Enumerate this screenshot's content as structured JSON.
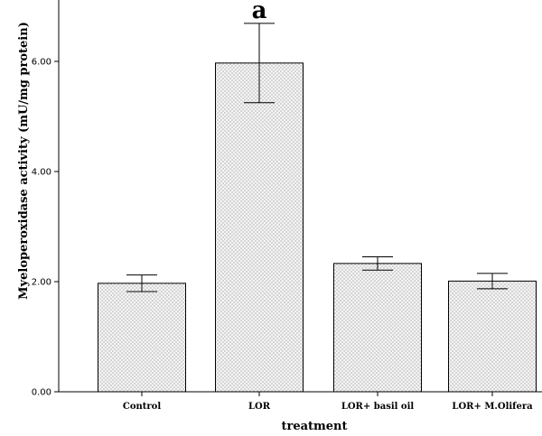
{
  "chart_data": {
    "type": "bar",
    "title": "",
    "xlabel": "treatment",
    "ylabel": "Myeloperoxidase activity (mU/mg protein)",
    "categories": [
      "Control",
      "LOR",
      "LOR+ basil oil",
      "LOR+ M.Olifera"
    ],
    "values": [
      1.97,
      5.97,
      2.33,
      2.01
    ],
    "error": [
      0.15,
      0.72,
      0.12,
      0.14
    ],
    "ylim": [
      0,
      7.0
    ],
    "yticks": [
      0,
      2,
      4,
      6
    ],
    "ytick_labels": [
      "0.00",
      "2.00",
      "4.00",
      "6.00"
    ],
    "annotations": [
      {
        "category": "LOR",
        "text": "a"
      }
    ],
    "bar_fill": "dotted light gray",
    "grid": false,
    "legend": "none"
  },
  "colors": {
    "bar_fill": "#f2f2f2",
    "dot": "#8a8a8a",
    "stroke": "#000000"
  }
}
